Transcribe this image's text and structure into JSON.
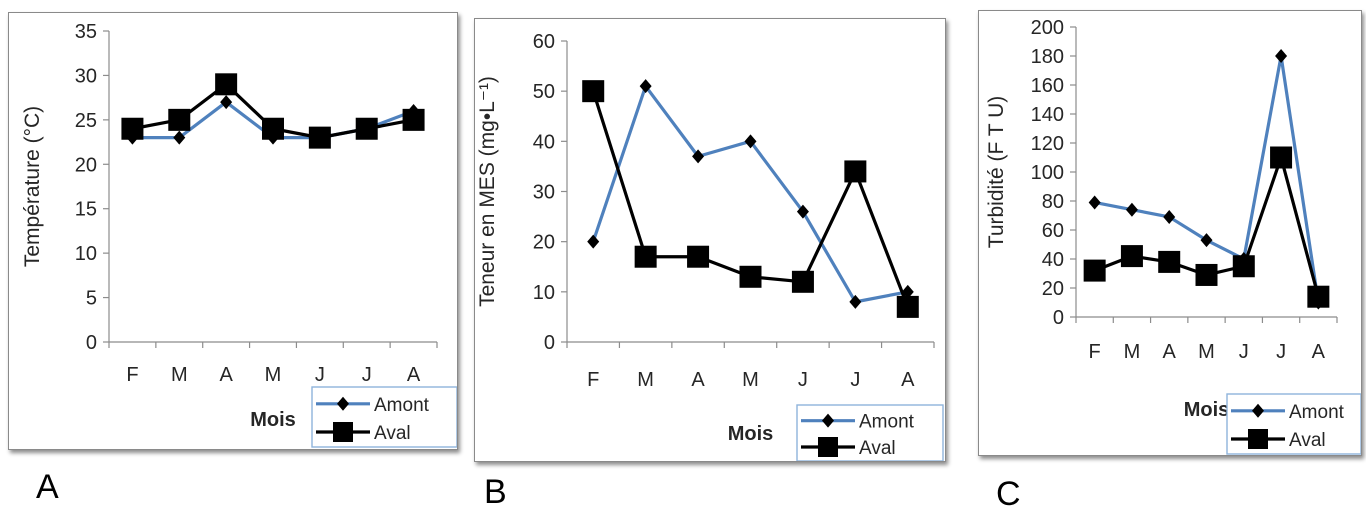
{
  "panels": [
    {
      "panel_label": "A",
      "chart_data": {
        "type": "line",
        "title": "",
        "xlabel": "Mois",
        "ylabel": "Température (°C)",
        "categories": [
          "F",
          "M",
          "A",
          "M",
          "J",
          "J",
          "A"
        ],
        "ylim": [
          0,
          35
        ],
        "yticks": [
          0,
          5,
          10,
          15,
          20,
          25,
          30,
          35
        ],
        "grid": false,
        "legend": "bottom-right",
        "series": [
          {
            "name": "Amont",
            "color": "#4f81bd",
            "marker": "diamond",
            "values": [
              23,
              23,
              27,
              23,
              23,
              24,
              26
            ]
          },
          {
            "name": "Aval",
            "color": "#000000",
            "marker": "square",
            "values": [
              24,
              25,
              29,
              24,
              23,
              24,
              25
            ]
          }
        ]
      }
    },
    {
      "panel_label": "B",
      "chart_data": {
        "type": "line",
        "title": "",
        "xlabel": "Mois",
        "ylabel": "Teneur en MES (mg•L⁻¹)",
        "categories": [
          "F",
          "M",
          "A",
          "M",
          "J",
          "J",
          "A"
        ],
        "ylim": [
          0,
          60
        ],
        "yticks": [
          0,
          10,
          20,
          30,
          40,
          50,
          60
        ],
        "grid": false,
        "legend": "bottom-right",
        "series": [
          {
            "name": "Amont",
            "color": "#4f81bd",
            "marker": "diamond",
            "values": [
              20,
              51,
              37,
              40,
              26,
              8,
              10
            ]
          },
          {
            "name": "Aval",
            "color": "#000000",
            "marker": "square",
            "values": [
              50,
              17,
              17,
              13,
              12,
              34,
              7
            ]
          }
        ]
      }
    },
    {
      "panel_label": "C",
      "chart_data": {
        "type": "line",
        "title": "",
        "xlabel": "Mois",
        "ylabel": "Turbidité (F T U)",
        "categories": [
          "F",
          "M",
          "A",
          "M",
          "J",
          "J",
          "A"
        ],
        "ylim": [
          0,
          200
        ],
        "yticks": [
          0,
          20,
          40,
          60,
          80,
          100,
          120,
          140,
          160,
          180,
          200
        ],
        "grid": false,
        "legend": "bottom-right",
        "series": [
          {
            "name": "Amont",
            "color": "#4f81bd",
            "marker": "diamond",
            "values": [
              79,
              74,
              69,
              53,
              40,
              180,
              10
            ]
          },
          {
            "name": "Aval",
            "color": "#000000",
            "marker": "square",
            "values": [
              32,
              42,
              38,
              29,
              35,
              110,
              14
            ]
          }
        ]
      }
    }
  ]
}
